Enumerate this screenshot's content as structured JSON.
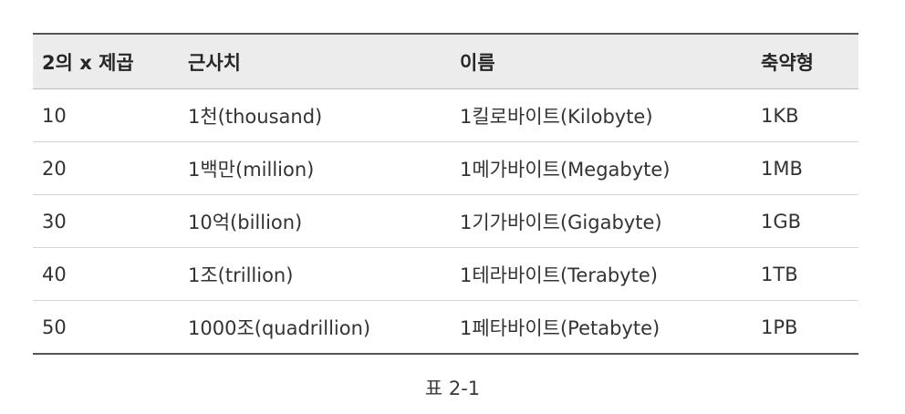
{
  "table": {
    "headers": [
      "2의 x 제곱",
      "근사치",
      "이름",
      "축약형"
    ],
    "rows": [
      [
        "10",
        "1천(thousand)",
        "1킬로바이트(Kilobyte)",
        "1KB"
      ],
      [
        "20",
        "1백만(million)",
        "1메가바이트(Megabyte)",
        "1MB"
      ],
      [
        "30",
        "10억(billion)",
        "1기가바이트(Gigabyte)",
        "1GB"
      ],
      [
        "40",
        "1조(trillion)",
        "1테라바이트(Terabyte)",
        "1TB"
      ],
      [
        "50",
        "1000조(quadrillion)",
        "1페타바이트(Petabyte)",
        "1PB"
      ]
    ]
  },
  "caption": "표 2-1"
}
